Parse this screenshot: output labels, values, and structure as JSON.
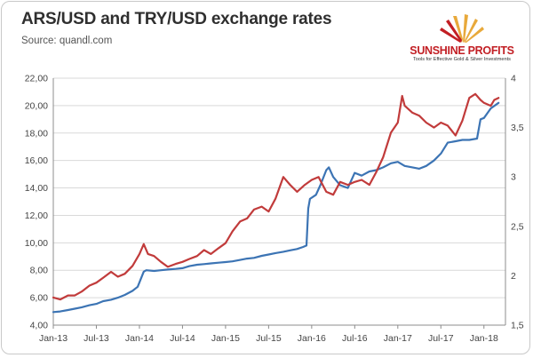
{
  "header": {
    "title": "ARS/USD and TRY/USD exchange rates",
    "source": "Source: quandl.com"
  },
  "logo": {
    "name": "SUNSHINE PROFITS",
    "tagline": "Tools for Effective Gold & Silver Investments",
    "colors": {
      "primary": "#c21f24",
      "accent": "#e8a93b"
    }
  },
  "chart_data": {
    "type": "line",
    "title": "ARS/USD and TRY/USD exchange rates",
    "x_ticks": [
      "Jan-13",
      "Jul-13",
      "Jan-14",
      "Jul-14",
      "Jan-15",
      "Jul-15",
      "Jan-16",
      "Jul-16",
      "Jan-17",
      "Jul-17",
      "Jan-18"
    ],
    "x_range": [
      2013.0,
      2018.25
    ],
    "y_left": {
      "range": [
        4,
        22
      ],
      "ticks": [
        "4,00",
        "6,00",
        "8,00",
        "10,00",
        "12,00",
        "14,00",
        "16,00",
        "18,00",
        "20,00",
        "22,00"
      ]
    },
    "y_right": {
      "range": [
        1.5,
        4
      ],
      "ticks": [
        "1,5",
        "2",
        "2,5",
        "3",
        "3,5",
        "4"
      ]
    },
    "grid": "horizontal",
    "series": [
      {
        "name": "ARS/USD",
        "axis": "left",
        "color": "#3c74b4",
        "points": [
          [
            2013.0,
            4.95
          ],
          [
            2013.08,
            5.0
          ],
          [
            2013.17,
            5.1
          ],
          [
            2013.25,
            5.2
          ],
          [
            2013.33,
            5.3
          ],
          [
            2013.42,
            5.45
          ],
          [
            2013.5,
            5.55
          ],
          [
            2013.58,
            5.75
          ],
          [
            2013.67,
            5.85
          ],
          [
            2013.75,
            6.0
          ],
          [
            2013.83,
            6.2
          ],
          [
            2013.92,
            6.5
          ],
          [
            2013.98,
            6.8
          ],
          [
            2014.05,
            7.9
          ],
          [
            2014.08,
            8.0
          ],
          [
            2014.17,
            7.95
          ],
          [
            2014.25,
            8.0
          ],
          [
            2014.33,
            8.05
          ],
          [
            2014.42,
            8.1
          ],
          [
            2014.5,
            8.15
          ],
          [
            2014.58,
            8.3
          ],
          [
            2014.67,
            8.4
          ],
          [
            2014.75,
            8.45
          ],
          [
            2014.83,
            8.5
          ],
          [
            2014.92,
            8.55
          ],
          [
            2015.0,
            8.6
          ],
          [
            2015.08,
            8.65
          ],
          [
            2015.17,
            8.75
          ],
          [
            2015.25,
            8.85
          ],
          [
            2015.33,
            8.9
          ],
          [
            2015.42,
            9.05
          ],
          [
            2015.5,
            9.15
          ],
          [
            2015.58,
            9.25
          ],
          [
            2015.67,
            9.35
          ],
          [
            2015.75,
            9.45
          ],
          [
            2015.83,
            9.55
          ],
          [
            2015.9,
            9.7
          ],
          [
            2015.94,
            9.8
          ],
          [
            2015.96,
            12.5
          ],
          [
            2015.98,
            13.2
          ],
          [
            2016.05,
            13.5
          ],
          [
            2016.1,
            14.2
          ],
          [
            2016.17,
            15.3
          ],
          [
            2016.2,
            15.5
          ],
          [
            2016.25,
            14.8
          ],
          [
            2016.33,
            14.2
          ],
          [
            2016.42,
            14.0
          ],
          [
            2016.5,
            15.1
          ],
          [
            2016.58,
            14.9
          ],
          [
            2016.67,
            15.2
          ],
          [
            2016.75,
            15.3
          ],
          [
            2016.83,
            15.5
          ],
          [
            2016.92,
            15.8
          ],
          [
            2017.0,
            15.9
          ],
          [
            2017.08,
            15.6
          ],
          [
            2017.17,
            15.5
          ],
          [
            2017.25,
            15.4
          ],
          [
            2017.33,
            15.6
          ],
          [
            2017.42,
            16.0
          ],
          [
            2017.5,
            16.5
          ],
          [
            2017.58,
            17.3
          ],
          [
            2017.67,
            17.4
          ],
          [
            2017.75,
            17.5
          ],
          [
            2017.83,
            17.5
          ],
          [
            2017.92,
            17.6
          ],
          [
            2017.96,
            19.0
          ],
          [
            2018.0,
            19.1
          ],
          [
            2018.08,
            19.8
          ],
          [
            2018.17,
            20.2
          ]
        ]
      },
      {
        "name": "TRY/USD",
        "axis": "right",
        "color": "#c13b3b",
        "points": [
          [
            2013.0,
            1.78
          ],
          [
            2013.08,
            1.76
          ],
          [
            2013.17,
            1.8
          ],
          [
            2013.25,
            1.8
          ],
          [
            2013.33,
            1.84
          ],
          [
            2013.42,
            1.9
          ],
          [
            2013.5,
            1.93
          ],
          [
            2013.58,
            1.98
          ],
          [
            2013.67,
            2.04
          ],
          [
            2013.75,
            1.99
          ],
          [
            2013.83,
            2.02
          ],
          [
            2013.92,
            2.1
          ],
          [
            2014.0,
            2.22
          ],
          [
            2014.05,
            2.32
          ],
          [
            2014.1,
            2.22
          ],
          [
            2014.17,
            2.2
          ],
          [
            2014.25,
            2.14
          ],
          [
            2014.33,
            2.09
          ],
          [
            2014.42,
            2.12
          ],
          [
            2014.5,
            2.14
          ],
          [
            2014.58,
            2.17
          ],
          [
            2014.67,
            2.2
          ],
          [
            2014.75,
            2.26
          ],
          [
            2014.83,
            2.22
          ],
          [
            2014.92,
            2.28
          ],
          [
            2015.0,
            2.33
          ],
          [
            2015.08,
            2.45
          ],
          [
            2015.17,
            2.55
          ],
          [
            2015.25,
            2.58
          ],
          [
            2015.33,
            2.67
          ],
          [
            2015.42,
            2.7
          ],
          [
            2015.5,
            2.65
          ],
          [
            2015.58,
            2.78
          ],
          [
            2015.67,
            3.0
          ],
          [
            2015.75,
            2.92
          ],
          [
            2015.83,
            2.85
          ],
          [
            2015.92,
            2.92
          ],
          [
            2016.0,
            2.97
          ],
          [
            2016.08,
            3.0
          ],
          [
            2016.17,
            2.85
          ],
          [
            2016.25,
            2.82
          ],
          [
            2016.33,
            2.95
          ],
          [
            2016.42,
            2.92
          ],
          [
            2016.5,
            2.95
          ],
          [
            2016.58,
            2.97
          ],
          [
            2016.67,
            2.92
          ],
          [
            2016.75,
            3.05
          ],
          [
            2016.83,
            3.2
          ],
          [
            2016.92,
            3.45
          ],
          [
            2017.0,
            3.55
          ],
          [
            2017.05,
            3.82
          ],
          [
            2017.08,
            3.72
          ],
          [
            2017.17,
            3.65
          ],
          [
            2017.25,
            3.62
          ],
          [
            2017.33,
            3.55
          ],
          [
            2017.42,
            3.5
          ],
          [
            2017.5,
            3.55
          ],
          [
            2017.58,
            3.52
          ],
          [
            2017.67,
            3.42
          ],
          [
            2017.75,
            3.57
          ],
          [
            2017.83,
            3.8
          ],
          [
            2017.9,
            3.84
          ],
          [
            2017.96,
            3.78
          ],
          [
            2018.0,
            3.75
          ],
          [
            2018.08,
            3.72
          ],
          [
            2018.12,
            3.78
          ],
          [
            2018.17,
            3.8
          ]
        ]
      }
    ]
  }
}
